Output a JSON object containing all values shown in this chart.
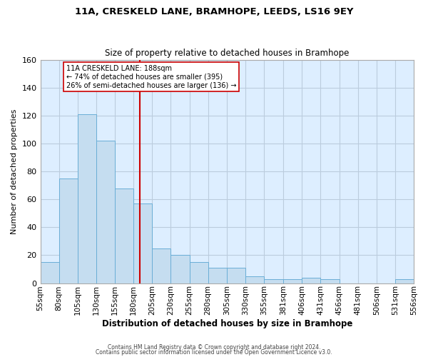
{
  "title": "11A, CRESKELD LANE, BRAMHOPE, LEEDS, LS16 9EY",
  "subtitle": "Size of property relative to detached houses in Bramhope",
  "xlabel": "Distribution of detached houses by size in Bramhope",
  "ylabel": "Number of detached properties",
  "bar_color": "#c5ddf0",
  "bar_edge_color": "#6aaed6",
  "background_color": "#ffffff",
  "plot_bg_color": "#ddeeff",
  "grid_color": "#bbccdd",
  "bin_edges": [
    55,
    80,
    105,
    130,
    155,
    180,
    205,
    230,
    255,
    280,
    305,
    330,
    355,
    381,
    406,
    431,
    456,
    481,
    506,
    531,
    556
  ],
  "bin_labels": [
    "55sqm",
    "80sqm",
    "105sqm",
    "130sqm",
    "155sqm",
    "180sqm",
    "205sqm",
    "230sqm",
    "255sqm",
    "280sqm",
    "305sqm",
    "330sqm",
    "355sqm",
    "381sqm",
    "406sqm",
    "431sqm",
    "456sqm",
    "481sqm",
    "506sqm",
    "531sqm",
    "556sqm"
  ],
  "counts": [
    15,
    75,
    121,
    102,
    68,
    57,
    25,
    20,
    15,
    11,
    11,
    5,
    3,
    3,
    4,
    3,
    0,
    0,
    0,
    3
  ],
  "property_size": 188,
  "vline_color": "#cc0000",
  "annotation_line1": "11A CRESKELD LANE: 188sqm",
  "annotation_line2": "← 74% of detached houses are smaller (395)",
  "annotation_line3": "26% of semi-detached houses are larger (136) →",
  "annotation_box_color": "#ffffff",
  "annotation_box_edge_color": "#cc0000",
  "ylim": [
    0,
    160
  ],
  "yticks": [
    0,
    20,
    40,
    60,
    80,
    100,
    120,
    140,
    160
  ],
  "footer_line1": "Contains HM Land Registry data © Crown copyright and database right 2024.",
  "footer_line2": "Contains public sector information licensed under the Open Government Licence v3.0."
}
